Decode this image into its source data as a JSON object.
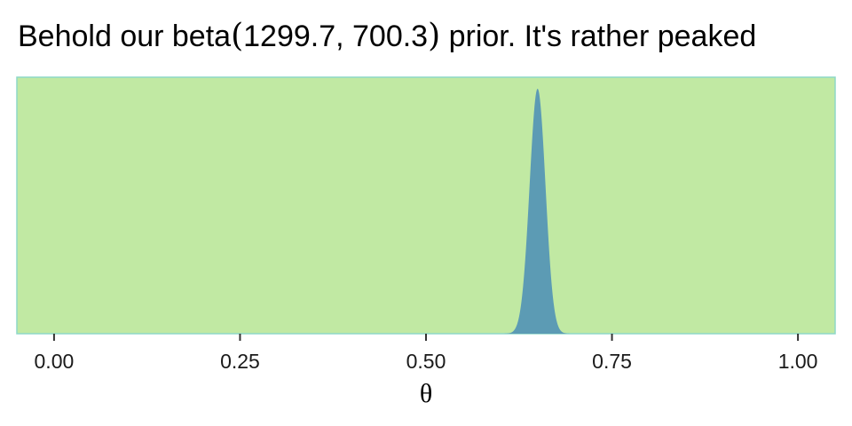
{
  "chart_data": {
    "type": "area",
    "title_parts": {
      "prefix": "Behold our beta",
      "open_paren": "(",
      "params": "1299.7, 700.3",
      "close_paren": ")",
      "suffix": " prior. It's rather peaked"
    },
    "distribution": {
      "family": "beta",
      "alpha": 1299.7,
      "beta": 700.3
    },
    "xlabel": "θ",
    "ylabel": "",
    "xlim": [
      -0.05,
      1.05
    ],
    "x_ticks": [
      0,
      0.25,
      0.5,
      0.75,
      1
    ],
    "x_tick_labels": [
      "0.00",
      "0.25",
      "0.50",
      "0.75",
      "1.00"
    ],
    "y_ticks_shown": false,
    "grid": false,
    "colors": {
      "panel_background": "#c1e9a3",
      "panel_border": "#8ed8c8",
      "density_fill": "#5c9bb4"
    }
  }
}
